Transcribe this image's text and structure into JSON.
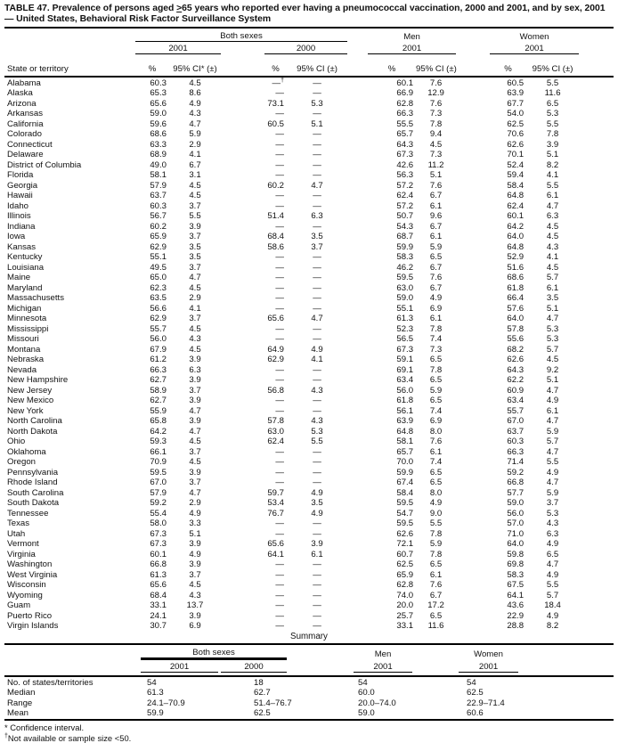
{
  "title": {
    "pre": "TABLE 47. Prevalence of persons aged ",
    "geq": ">",
    "post": "65 years who reported ever having a pneumococcal vaccination, 2000 and 2001, and by sex, 2001 — United States, Behavioral Risk Factor Surveillance System"
  },
  "table": {
    "state_col_header": "State or territory",
    "group_both": "Both sexes",
    "group_men": "Men",
    "group_women": "Women",
    "year_both_2001": "2001",
    "year_both_2000": "2000",
    "year_men": "2001",
    "year_women": "2001",
    "pct_header": "%",
    "ci_header_star": "95% CI* (±)",
    "ci_header": "95% CI (±)",
    "rows": [
      {
        "state": "Alabama",
        "values": [
          "60.3",
          "4.5",
          "—†",
          "—",
          "60.1",
          "7.6",
          "60.5",
          "5.5"
        ]
      },
      {
        "state": "Alaska",
        "values": [
          "65.3",
          "8.6",
          "—",
          "—",
          "66.9",
          "12.9",
          "63.9",
          "11.6"
        ]
      },
      {
        "state": "Arizona",
        "values": [
          "65.6",
          "4.9",
          "73.1",
          "5.3",
          "62.8",
          "7.6",
          "67.7",
          "6.5"
        ]
      },
      {
        "state": "Arkansas",
        "values": [
          "59.0",
          "4.3",
          "—",
          "—",
          "66.3",
          "7.3",
          "54.0",
          "5.3"
        ]
      },
      {
        "state": "California",
        "values": [
          "59.6",
          "4.7",
          "60.5",
          "5.1",
          "55.5",
          "7.8",
          "62.5",
          "5.5"
        ]
      },
      {
        "state": "Colorado",
        "values": [
          "68.6",
          "5.9",
          "—",
          "—",
          "65.7",
          "9.4",
          "70.6",
          "7.8"
        ]
      },
      {
        "state": "Connecticut",
        "values": [
          "63.3",
          "2.9",
          "—",
          "—",
          "64.3",
          "4.5",
          "62.6",
          "3.9"
        ]
      },
      {
        "state": "Delaware",
        "values": [
          "68.9",
          "4.1",
          "—",
          "—",
          "67.3",
          "7.3",
          "70.1",
          "5.1"
        ]
      },
      {
        "state": "District of Columbia",
        "values": [
          "49.0",
          "6.7",
          "—",
          "—",
          "42.6",
          "11.2",
          "52.4",
          "8.2"
        ]
      },
      {
        "state": "Florida",
        "values": [
          "58.1",
          "3.1",
          "—",
          "—",
          "56.3",
          "5.1",
          "59.4",
          "4.1"
        ]
      },
      {
        "state": "Georgia",
        "values": [
          "57.9",
          "4.5",
          "60.2",
          "4.7",
          "57.2",
          "7.6",
          "58.4",
          "5.5"
        ]
      },
      {
        "state": "Hawaii",
        "values": [
          "63.7",
          "4.5",
          "—",
          "—",
          "62.4",
          "6.7",
          "64.8",
          "6.1"
        ]
      },
      {
        "state": "Idaho",
        "values": [
          "60.3",
          "3.7",
          "—",
          "—",
          "57.2",
          "6.1",
          "62.4",
          "4.7"
        ]
      },
      {
        "state": "Illinois",
        "values": [
          "56.7",
          "5.5",
          "51.4",
          "6.3",
          "50.7",
          "9.6",
          "60.1",
          "6.3"
        ]
      },
      {
        "state": "Indiana",
        "values": [
          "60.2",
          "3.9",
          "—",
          "—",
          "54.3",
          "6.7",
          "64.2",
          "4.5"
        ]
      },
      {
        "state": "Iowa",
        "values": [
          "65.9",
          "3.7",
          "68.4",
          "3.5",
          "68.7",
          "6.1",
          "64.0",
          "4.5"
        ]
      },
      {
        "state": "Kansas",
        "values": [
          "62.9",
          "3.5",
          "58.6",
          "3.7",
          "59.9",
          "5.9",
          "64.8",
          "4.3"
        ]
      },
      {
        "state": "Kentucky",
        "values": [
          "55.1",
          "3.5",
          "—",
          "—",
          "58.3",
          "6.5",
          "52.9",
          "4.1"
        ]
      },
      {
        "state": "Louisiana",
        "values": [
          "49.5",
          "3.7",
          "—",
          "—",
          "46.2",
          "6.7",
          "51.6",
          "4.5"
        ]
      },
      {
        "state": "Maine",
        "values": [
          "65.0",
          "4.7",
          "—",
          "—",
          "59.5",
          "7.6",
          "68.6",
          "5.7"
        ]
      },
      {
        "state": "Maryland",
        "values": [
          "62.3",
          "4.5",
          "—",
          "—",
          "63.0",
          "6.7",
          "61.8",
          "6.1"
        ]
      },
      {
        "state": "Massachusetts",
        "values": [
          "63.5",
          "2.9",
          "—",
          "—",
          "59.0",
          "4.9",
          "66.4",
          "3.5"
        ]
      },
      {
        "state": "Michigan",
        "values": [
          "56.6",
          "4.1",
          "—",
          "—",
          "55.1",
          "6.9",
          "57.6",
          "5.1"
        ]
      },
      {
        "state": "Minnesota",
        "values": [
          "62.9",
          "3.7",
          "65.6",
          "4.7",
          "61.3",
          "6.1",
          "64.0",
          "4.7"
        ]
      },
      {
        "state": "Mississippi",
        "values": [
          "55.7",
          "4.5",
          "—",
          "—",
          "52.3",
          "7.8",
          "57.8",
          "5.3"
        ]
      },
      {
        "state": "Missouri",
        "values": [
          "56.0",
          "4.3",
          "—",
          "—",
          "56.5",
          "7.4",
          "55.6",
          "5.3"
        ]
      },
      {
        "state": "Montana",
        "values": [
          "67.9",
          "4.5",
          "64.9",
          "4.9",
          "67.3",
          "7.3",
          "68.2",
          "5.7"
        ]
      },
      {
        "state": "Nebraska",
        "values": [
          "61.2",
          "3.9",
          "62.9",
          "4.1",
          "59.1",
          "6.5",
          "62.6",
          "4.5"
        ]
      },
      {
        "state": "Nevada",
        "values": [
          "66.3",
          "6.3",
          "—",
          "—",
          "69.1",
          "7.8",
          "64.3",
          "9.2"
        ]
      },
      {
        "state": "New Hampshire",
        "values": [
          "62.7",
          "3.9",
          "—",
          "—",
          "63.4",
          "6.5",
          "62.2",
          "5.1"
        ]
      },
      {
        "state": "New Jersey",
        "values": [
          "58.9",
          "3.7",
          "56.8",
          "4.3",
          "56.0",
          "5.9",
          "60.9",
          "4.7"
        ]
      },
      {
        "state": "New Mexico",
        "values": [
          "62.7",
          "3.9",
          "—",
          "—",
          "61.8",
          "6.5",
          "63.4",
          "4.9"
        ]
      },
      {
        "state": "New York",
        "values": [
          "55.9",
          "4.7",
          "—",
          "—",
          "56.1",
          "7.4",
          "55.7",
          "6.1"
        ]
      },
      {
        "state": "North Carolina",
        "values": [
          "65.8",
          "3.9",
          "57.8",
          "4.3",
          "63.9",
          "6.9",
          "67.0",
          "4.7"
        ]
      },
      {
        "state": "North Dakota",
        "values": [
          "64.2",
          "4.7",
          "63.0",
          "5.3",
          "64.8",
          "8.0",
          "63.7",
          "5.9"
        ]
      },
      {
        "state": "Ohio",
        "values": [
          "59.3",
          "4.5",
          "62.4",
          "5.5",
          "58.1",
          "7.6",
          "60.3",
          "5.7"
        ]
      },
      {
        "state": "Oklahoma",
        "values": [
          "66.1",
          "3.7",
          "—",
          "—",
          "65.7",
          "6.1",
          "66.3",
          "4.7"
        ]
      },
      {
        "state": "Oregon",
        "values": [
          "70.9",
          "4.5",
          "—",
          "—",
          "70.0",
          "7.4",
          "71.4",
          "5.5"
        ]
      },
      {
        "state": "Pennsylvania",
        "values": [
          "59.5",
          "3.9",
          "—",
          "—",
          "59.9",
          "6.5",
          "59.2",
          "4.9"
        ]
      },
      {
        "state": "Rhode Island",
        "values": [
          "67.0",
          "3.7",
          "—",
          "—",
          "67.4",
          "6.5",
          "66.8",
          "4.7"
        ]
      },
      {
        "state": "South Carolina",
        "values": [
          "57.9",
          "4.7",
          "59.7",
          "4.9",
          "58.4",
          "8.0",
          "57.7",
          "5.9"
        ]
      },
      {
        "state": "South Dakota",
        "values": [
          "59.2",
          "2.9",
          "53.4",
          "3.5",
          "59.5",
          "4.9",
          "59.0",
          "3.7"
        ]
      },
      {
        "state": "Tennessee",
        "values": [
          "55.4",
          "4.9",
          "76.7",
          "4.9",
          "54.7",
          "9.0",
          "56.0",
          "5.3"
        ]
      },
      {
        "state": "Texas",
        "values": [
          "58.0",
          "3.3",
          "—",
          "—",
          "59.5",
          "5.5",
          "57.0",
          "4.3"
        ]
      },
      {
        "state": "Utah",
        "values": [
          "67.3",
          "5.1",
          "—",
          "—",
          "62.6",
          "7.8",
          "71.0",
          "6.3"
        ]
      },
      {
        "state": "Vermont",
        "values": [
          "67.3",
          "3.9",
          "65.6",
          "3.9",
          "72.1",
          "5.9",
          "64.0",
          "4.9"
        ]
      },
      {
        "state": "Virginia",
        "values": [
          "60.1",
          "4.9",
          "64.1",
          "6.1",
          "60.7",
          "7.8",
          "59.8",
          "6.5"
        ]
      },
      {
        "state": "Washington",
        "values": [
          "66.8",
          "3.9",
          "—",
          "—",
          "62.5",
          "6.5",
          "69.8",
          "4.7"
        ]
      },
      {
        "state": "West Virginia",
        "values": [
          "61.3",
          "3.7",
          "—",
          "—",
          "65.9",
          "6.1",
          "58.3",
          "4.9"
        ]
      },
      {
        "state": "Wisconsin",
        "values": [
          "65.6",
          "4.5",
          "—",
          "—",
          "62.8",
          "7.6",
          "67.5",
          "5.5"
        ]
      },
      {
        "state": "Wyoming",
        "values": [
          "68.4",
          "4.3",
          "—",
          "—",
          "74.0",
          "6.7",
          "64.1",
          "5.7"
        ]
      },
      {
        "state": "Guam",
        "values": [
          "33.1",
          "13.7",
          "—",
          "—",
          "20.0",
          "17.2",
          "43.6",
          "18.4"
        ]
      },
      {
        "state": "Puerto Rico",
        "values": [
          "24.1",
          "3.9",
          "—",
          "—",
          "25.7",
          "6.5",
          "22.9",
          "4.9"
        ]
      },
      {
        "state": "Virgin Islands",
        "values": [
          "30.7",
          "6.9",
          "—",
          "—",
          "33.1",
          "11.6",
          "28.8",
          "8.2"
        ]
      }
    ]
  },
  "summary": {
    "heading": "Summary",
    "group_both": "Both sexes",
    "group_men": "Men",
    "group_women": "Women",
    "year_both_2001": "2001",
    "year_both_2000": "2000",
    "year_men": "2001",
    "year_women": "2001",
    "rows": [
      {
        "label": "No. of states/territories",
        "values": [
          "54",
          "18",
          "54",
          "54"
        ]
      },
      {
        "label": "Median",
        "values": [
          "61.3",
          "62.7",
          "60.0",
          "62.5"
        ]
      },
      {
        "label": "Range",
        "values": [
          "24.1–70.9",
          "51.4–76.7",
          "20.0–74.0",
          "22.9–71.4"
        ]
      },
      {
        "label": "Mean",
        "values": [
          "59.9",
          "62.5",
          "59.0",
          "60.6"
        ]
      }
    ]
  },
  "footnotes": [
    {
      "marker": "*",
      "text": " Confidence interval."
    },
    {
      "marker": "†",
      "text": "Not available or sample size <50."
    }
  ]
}
